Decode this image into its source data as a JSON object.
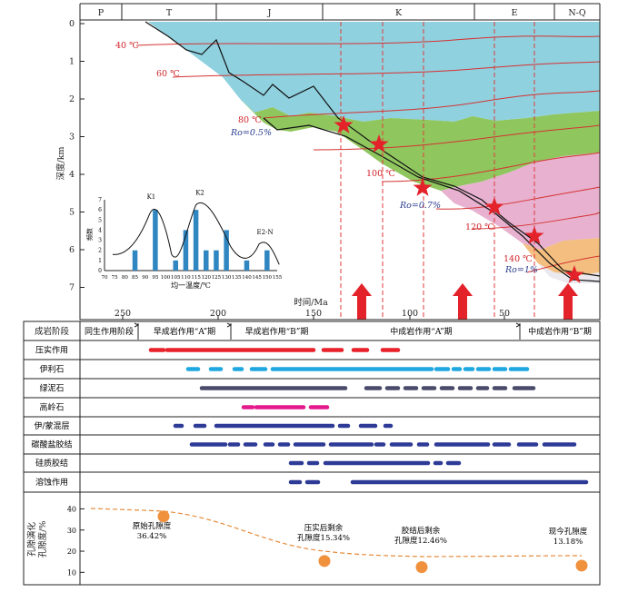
{
  "periods": [
    "P",
    "T",
    "J",
    "K",
    "E",
    "N-Q"
  ],
  "depth_axis": {
    "label": "深度/km",
    "ticks": [
      "0",
      "1",
      "2",
      "3",
      "4",
      "5",
      "6",
      "7"
    ]
  },
  "time_axis": {
    "label": "时间/Ma",
    "ticks": [
      "250",
      "200",
      "150",
      "100",
      "50"
    ]
  },
  "isotherms": [
    {
      "label": "40 ℃"
    },
    {
      "label": "60 ℃"
    },
    {
      "label": "80 ℃"
    },
    {
      "label": "100 ℃"
    },
    {
      "label": "120 ℃"
    },
    {
      "label": "140 ℃"
    }
  ],
  "vitrinite": [
    "Ro=0.5%",
    "Ro=0.7%",
    "Ro=1%"
  ],
  "inset_histogram": {
    "ylabel": "频数",
    "xlabel": "均一温度/℃",
    "x_ticks": [
      "70",
      "75",
      "80",
      "85",
      "90",
      "95",
      "100",
      "105",
      "110",
      "115",
      "120",
      "125",
      "130",
      "135",
      "140",
      "145",
      "150",
      "155"
    ],
    "y_ticks": [
      "0",
      "1",
      "2",
      "3",
      "4",
      "5",
      "6",
      "7"
    ],
    "bars": [
      {
        "x": 85,
        "v": 2
      },
      {
        "x": 95,
        "v": 6
      },
      {
        "x": 105,
        "v": 1
      },
      {
        "x": 110,
        "v": 4
      },
      {
        "x": 115,
        "v": 6
      },
      {
        "x": 120,
        "v": 2
      },
      {
        "x": 125,
        "v": 2
      },
      {
        "x": 130,
        "v": 4
      },
      {
        "x": 140,
        "v": 1
      },
      {
        "x": 150,
        "v": 2
      }
    ],
    "peak_labels": [
      "K1",
      "K2",
      "E2-N"
    ]
  },
  "stages": {
    "title": "成岩阶段",
    "items": [
      "同生作用阶段",
      "早成岩作用“A”期",
      "早成岩作用“B”期",
      "中成岩作用“A”期",
      "中成岩作用“B”期"
    ]
  },
  "processes": [
    {
      "name": "压实作用",
      "color": "#e8212a"
    },
    {
      "name": "伊利石",
      "color": "#1fa8e0"
    },
    {
      "name": "绿泥石",
      "color": "#4a4a6a"
    },
    {
      "name": "高岭石",
      "color": "#e4198c"
    },
    {
      "name": "伊/蒙混层",
      "color": "#2d3a96"
    },
    {
      "name": "碳酸盐胶结",
      "color": "#2d3a96"
    },
    {
      "name": "硅质胶结",
      "color": "#2d3a96"
    },
    {
      "name": "溶蚀作用",
      "color": "#2d3a96"
    }
  ],
  "porosity": {
    "ylabel_1": "孔隙度/%",
    "ylabel_2": "孔隙演化",
    "y_ticks": [
      "10",
      "20",
      "30",
      "40"
    ],
    "points": [
      {
        "label": "原始孔隙度",
        "value_text": "36.42%",
        "value": 36.42
      },
      {
        "label": "压实后剩余孔隙度15.34%",
        "value": 15.34
      },
      {
        "label": "胶结后剩余孔隙度12.46%",
        "value": 12.46
      },
      {
        "label": "现今孔隙度13.18%",
        "value": 13.18
      }
    ]
  }
}
